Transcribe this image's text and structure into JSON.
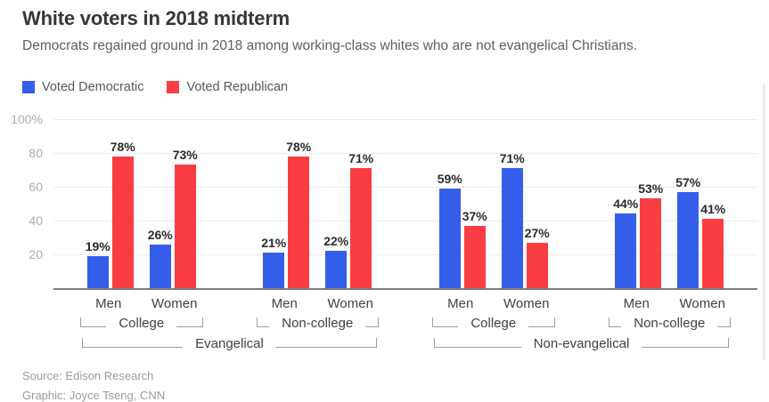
{
  "header": {
    "title": "White voters in 2018 midterm",
    "subtitle": "Democrats regained ground in 2018 among working-class whites who are not evangelical Christians."
  },
  "legend": {
    "democratic": "Voted Democratic",
    "republican": "Voted Republican"
  },
  "colors": {
    "democratic": "#345eea",
    "republican": "#f93e43"
  },
  "y_axis": {
    "ticks": [
      "100%",
      "80",
      "60",
      "40",
      "20"
    ]
  },
  "religions": [
    {
      "label": "Evangelical"
    },
    {
      "label": "Non-evangelical"
    }
  ],
  "footer": {
    "source": "Source: Edison Research",
    "credit": "Graphic: Joyce Tseng, CNN"
  },
  "chart_data": {
    "type": "bar",
    "title": "White voters in 2018 midterm",
    "ylabel": "",
    "xlabel": "",
    "ylim": [
      0,
      100
    ],
    "y_tick_values": [
      20,
      40,
      60,
      80,
      100
    ],
    "grid": true,
    "legend_position": "top-left",
    "series": [
      {
        "name": "Voted Democratic",
        "color": "#345eea"
      },
      {
        "name": "Voted Republican",
        "color": "#f93e43"
      }
    ],
    "groups": [
      {
        "religion": "Evangelical",
        "education": "College",
        "bars": [
          {
            "category": "Men",
            "voted_democratic": 19,
            "voted_republican": 78,
            "dem_label": "19%",
            "rep_label": "78%"
          },
          {
            "category": "Women",
            "voted_democratic": 26,
            "voted_republican": 73,
            "dem_label": "26%",
            "rep_label": "73%"
          }
        ]
      },
      {
        "religion": "Evangelical",
        "education": "Non-college",
        "bars": [
          {
            "category": "Men",
            "voted_democratic": 21,
            "voted_republican": 78,
            "dem_label": "21%",
            "rep_label": "78%"
          },
          {
            "category": "Women",
            "voted_democratic": 22,
            "voted_republican": 71,
            "dem_label": "22%",
            "rep_label": "71%"
          }
        ]
      },
      {
        "religion": "Non-evangelical",
        "education": "College",
        "bars": [
          {
            "category": "Men",
            "voted_democratic": 59,
            "voted_republican": 37,
            "dem_label": "59%",
            "rep_label": "37%"
          },
          {
            "category": "Women",
            "voted_democratic": 71,
            "voted_republican": 27,
            "dem_label": "71%",
            "rep_label": "27%"
          }
        ]
      },
      {
        "religion": "Non-evangelical",
        "education": "Non-college",
        "bars": [
          {
            "category": "Men",
            "voted_democratic": 44,
            "voted_republican": 53,
            "dem_label": "44%",
            "rep_label": "53%"
          },
          {
            "category": "Women",
            "voted_democratic": 57,
            "voted_republican": 41,
            "dem_label": "57%",
            "rep_label": "41%"
          }
        ]
      }
    ]
  }
}
